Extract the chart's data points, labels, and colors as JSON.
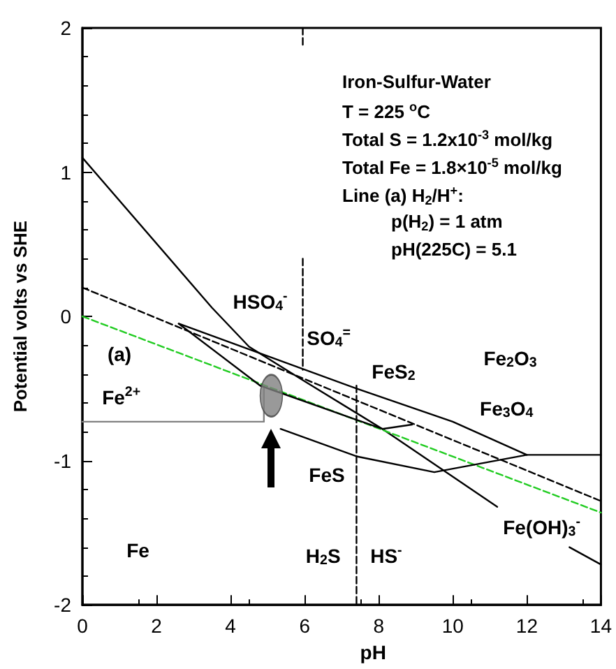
{
  "chart_data": {
    "type": "line",
    "xlabel": "pH",
    "ylabel": "Potential volts vs SHE",
    "xlim": [
      0,
      14
    ],
    "ylim": [
      -2,
      2
    ],
    "xticks": [
      0,
      2,
      4,
      6,
      8,
      10,
      12,
      14
    ],
    "yticks": [
      -2,
      -1,
      0,
      1,
      2
    ],
    "grid": false,
    "marker": "none",
    "series": [
      {
        "color": "#000000",
        "line_style": "solid",
        "x": [
          0,
          3.5,
          4.5,
          6,
          8.1,
          11.2
        ],
        "values": [
          1.1,
          0.06,
          -0.21,
          -0.45,
          -0.78,
          -1.32
        ]
      },
      {
        "color": "#000000",
        "line_style": "dashed",
        "x": [
          0,
          14
        ],
        "values": [
          0.2,
          -1.28
        ]
      },
      {
        "color": "#22cc22",
        "line_style": "dashed",
        "x": [
          0,
          14
        ],
        "values": [
          0,
          -1.36
        ]
      },
      {
        "color": "#808080",
        "line_style": "solid",
        "x": [
          0,
          4.9,
          4.9
        ],
        "values": [
          -0.73,
          -0.73,
          -0.5
        ]
      },
      {
        "color": "#000000",
        "line_style": "solid",
        "x": [
          5.35,
          7.4,
          9.5,
          12,
          14
        ],
        "values": [
          -0.78,
          -0.97,
          -1.08,
          -0.96,
          -0.96
        ]
      },
      {
        "color": "#000000",
        "line_style": "solid",
        "x": [
          2.6,
          4.8,
          8.1,
          8.9
        ],
        "values": [
          -0.05,
          -0.48,
          -0.78,
          -0.75
        ]
      },
      {
        "color": "#000000",
        "line_style": "solid",
        "x": [
          2.6,
          7.4,
          10,
          12
        ],
        "values": [
          -0.05,
          -0.5,
          -0.73,
          -0.96
        ]
      },
      {
        "color": "#000000",
        "line_style": "solid",
        "x": [
          13.15,
          14
        ],
        "values": [
          -1.6,
          -1.72
        ]
      },
      {
        "color": "#000000",
        "line_style": "dashed",
        "x": [
          5.95,
          5.95
        ],
        "values": [
          2,
          1.88
        ]
      },
      {
        "color": "#000000",
        "line_style": "dashed",
        "x": [
          5.95,
          5.95
        ],
        "values": [
          0.4,
          -0.37
        ]
      },
      {
        "color": "#000000",
        "line_style": "dashed",
        "x": [
          7.4,
          7.4
        ],
        "values": [
          -0.48,
          -2
        ]
      },
      {
        "type": "scatter",
        "marker": "circle",
        "color": "#808080",
        "x": [
          5.1
        ],
        "values": [
          -0.55
        ]
      }
    ],
    "annotations": [
      "Iron-Sulfur-Water",
      "T = 225 $^{o}$C",
      "Total S = 1.2x10$^{-3}$ mol/kg",
      "Total Fe = 1.8×10$^{-5}$ mol/kg",
      "Line (a) H$_{2}$/H$^{+}$:",
      "p(H$_{2}$) = 1 atm",
      "pH(225C) = 5.1",
      "HSO$_{4}$$^{-}$",
      "SO$_{4}$$^{=}$",
      "(a)",
      "Fe$^{2+}$",
      "FeS$_{2}$",
      "Fe$_{2}$O$_{3}$",
      "Fe$_{3}$O$_{4}$",
      "FeS",
      "Fe(OH)$_{3}$$^{-}$",
      "Fe",
      "H$_{2}$S",
      "HS$^{-}$"
    ]
  }
}
